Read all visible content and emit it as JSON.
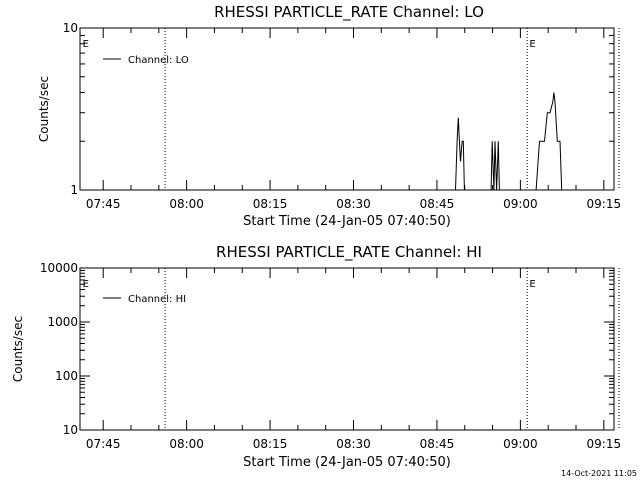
{
  "chart_data": [
    {
      "type": "line",
      "title": "RHESSI PARTICLE_RATE Channel: LO",
      "xlabel": "Start Time (24-Jan-05 07:40:50)",
      "ylabel": "Counts/sec",
      "yscale": "log",
      "ylim": [
        1,
        10
      ],
      "xlim_minutes": [
        0,
        96
      ],
      "x_ticks": [
        {
          "label": "07:45",
          "min": 4.17
        },
        {
          "label": "08:00",
          "min": 19.17
        },
        {
          "label": "08:15",
          "min": 34.17
        },
        {
          "label": "08:30",
          "min": 49.17
        },
        {
          "label": "08:45",
          "min": 64.17
        },
        {
          "label": "09:00",
          "min": 79.17
        },
        {
          "label": "09:15",
          "min": 94.17
        }
      ],
      "y_ticks": [
        {
          "label": "1",
          "value": 1
        },
        {
          "label": "10",
          "value": 10
        }
      ],
      "legend": {
        "label": "Channel: LO",
        "position": "top-left"
      },
      "grid": false,
      "vlines_min": [
        15.3,
        80.4,
        96.9
      ],
      "markers": [
        {
          "text": "E",
          "min": 0.3
        },
        {
          "text": "E",
          "min": 80.6
        }
      ],
      "series": [
        {
          "name": "Channel: LO",
          "points": [
            [
              0,
              1
            ],
            [
              67.5,
              1
            ],
            [
              67.8,
              2
            ],
            [
              68.0,
              2.8
            ],
            [
              68.2,
              2
            ],
            [
              68.4,
              1.5
            ],
            [
              68.7,
              2
            ],
            [
              68.9,
              2
            ],
            [
              69.1,
              1
            ],
            [
              73.9,
              1
            ],
            [
              74.1,
              2
            ],
            [
              74.4,
              1
            ],
            [
              74.6,
              2
            ],
            [
              74.9,
              1
            ],
            [
              75.2,
              2
            ],
            [
              75.4,
              1
            ],
            [
              80.6,
              1
            ],
            [
              81.5,
              1
            ],
            [
              82.0,
              1
            ],
            [
              82.6,
              2
            ],
            [
              83.5,
              2
            ],
            [
              84.0,
              3
            ],
            [
              84.5,
              3
            ],
            [
              85.0,
              3.5
            ],
            [
              85.2,
              4
            ],
            [
              85.4,
              3.5
            ],
            [
              85.8,
              2
            ],
            [
              86.3,
              2
            ],
            [
              86.6,
              1
            ],
            [
              96,
              1
            ]
          ]
        }
      ]
    },
    {
      "type": "line",
      "title": "RHESSI PARTICLE_RATE Channel: HI",
      "xlabel": "Start Time (24-Jan-05 07:40:50)",
      "ylabel": "Counts/sec",
      "yscale": "log",
      "ylim": [
        10,
        10000
      ],
      "xlim_minutes": [
        0,
        96
      ],
      "x_ticks": [
        {
          "label": "07:45",
          "min": 4.17
        },
        {
          "label": "08:00",
          "min": 19.17
        },
        {
          "label": "08:15",
          "min": 34.17
        },
        {
          "label": "08:30",
          "min": 49.17
        },
        {
          "label": "08:45",
          "min": 64.17
        },
        {
          "label": "09:00",
          "min": 79.17
        },
        {
          "label": "09:15",
          "min": 94.17
        }
      ],
      "y_ticks": [
        {
          "label": "10",
          "value": 10
        },
        {
          "label": "100",
          "value": 100
        },
        {
          "label": "1000",
          "value": 1000
        },
        {
          "label": "10000",
          "value": 10000
        }
      ],
      "legend": {
        "label": "Channel: HI",
        "position": "top-left"
      },
      "grid": false,
      "vlines_min": [
        15.3,
        80.4,
        96.9
      ],
      "markers": [
        {
          "text": "E",
          "min": 0.3
        },
        {
          "text": "E",
          "min": 80.6
        }
      ],
      "series": [
        {
          "name": "Channel: HI",
          "points": []
        }
      ]
    }
  ],
  "timestamp": "14-Oct-2021 11:05"
}
